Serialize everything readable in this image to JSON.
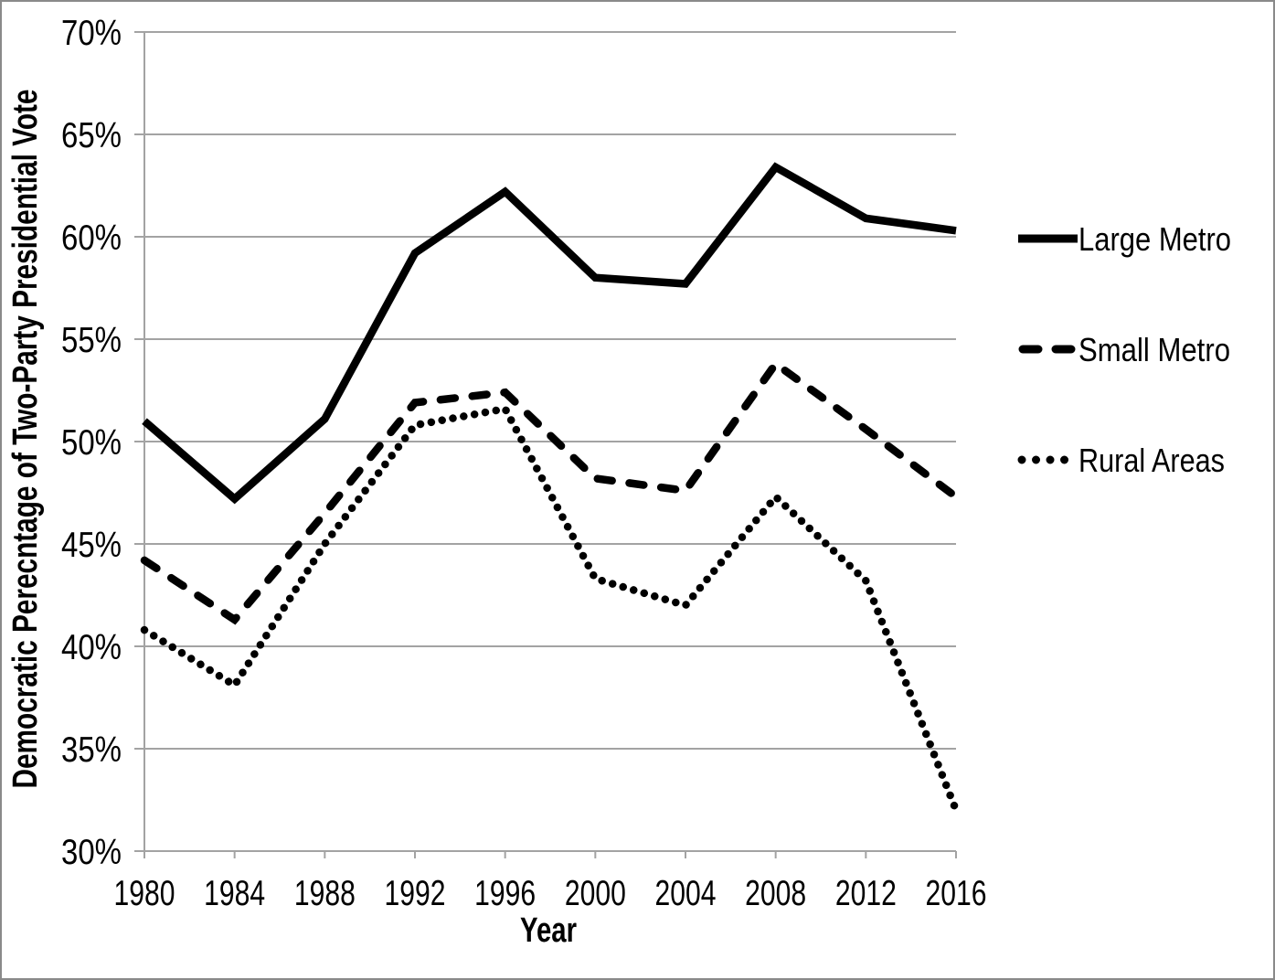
{
  "chart_data": {
    "type": "line",
    "title": "",
    "xlabel": "Year",
    "ylabel": "Democratic Perecntage of Two-Party Presidential Vote",
    "x": [
      1980,
      1984,
      1988,
      1992,
      1996,
      2000,
      2004,
      2008,
      2012,
      2016
    ],
    "x_tick_labels": [
      "1980",
      "1984",
      "1988",
      "1992",
      "1996",
      "2000",
      "2004",
      "2008",
      "2012",
      "2016"
    ],
    "ylim": [
      30,
      70
    ],
    "y_tick_step": 5,
    "y_tick_labels": [
      "30%",
      "35%",
      "40%",
      "45%",
      "50%",
      "55%",
      "60%",
      "65%",
      "70%"
    ],
    "grid": "horizontal",
    "legend_position": "right",
    "line_color": "#000000",
    "grid_color": "#a3a3a3",
    "text_color": "#000000",
    "series": [
      {
        "name": "Large Metro",
        "style": "solid",
        "values": [
          51.0,
          47.2,
          51.1,
          59.2,
          62.2,
          58.0,
          57.7,
          63.4,
          60.9,
          60.3
        ]
      },
      {
        "name": "Small Metro",
        "style": "dashed",
        "values": [
          44.2,
          41.3,
          46.5,
          51.9,
          52.4,
          48.2,
          47.6,
          53.8,
          50.6,
          47.3
        ]
      },
      {
        "name": "Rural Areas",
        "style": "dotted",
        "values": [
          40.8,
          38.1,
          45.0,
          50.8,
          51.6,
          43.3,
          42.0,
          47.3,
          43.2,
          32.0
        ]
      }
    ]
  }
}
